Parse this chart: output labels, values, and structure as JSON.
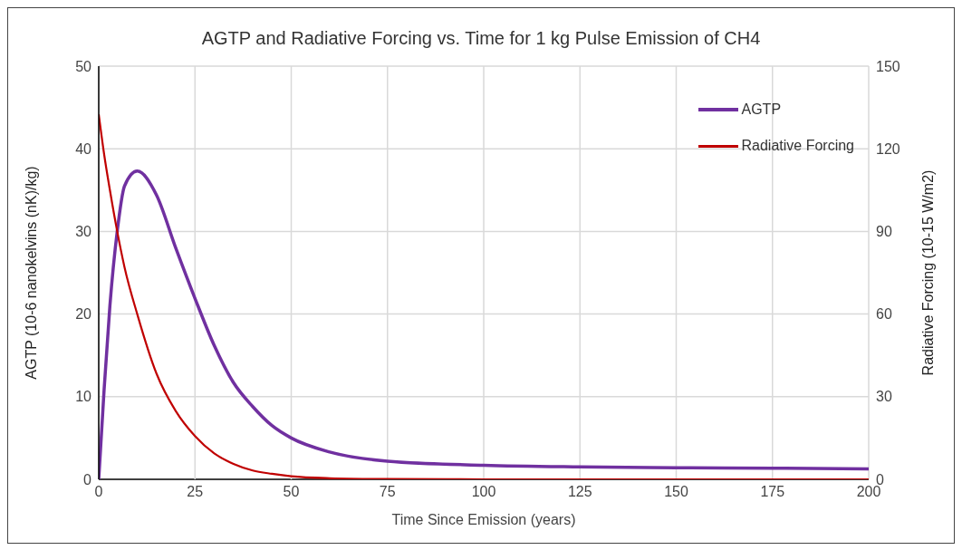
{
  "chart_data": {
    "type": "line",
    "title": "AGTP and Radiative Forcing vs. Time for 1 kg Pulse Emission of CH4",
    "xlabel": "Time Since Emission (years)",
    "ylabel": "AGTP (10-6 nanokelvins (nK)/kg)",
    "y2label": "Radiative Forcing (10-15 W/m2)",
    "x": [
      0,
      1.4,
      2.9,
      4.8,
      6.7,
      10,
      15,
      20,
      25,
      30,
      35,
      40,
      45,
      50,
      60,
      75,
      100,
      125,
      150,
      175,
      200
    ],
    "series": [
      {
        "name": "AGTP",
        "color": "#7030a0",
        "values": [
          0,
          10.9,
          21,
          30,
          35.5,
          37.3,
          34.4,
          28,
          21.9,
          16.2,
          11.7,
          8.8,
          6.5,
          5.0,
          3.3,
          2.2,
          1.7,
          1.5,
          1.4,
          1.35,
          1.25
        ]
      },
      {
        "name": "Radiative Forcing",
        "color": "#c00000",
        "axis": "y2",
        "values": [
          132.5,
          118,
          105,
          90,
          77,
          60,
          38.4,
          24.8,
          15.7,
          9.4,
          5.6,
          3.2,
          2,
          1.1,
          0.4,
          0.1,
          0,
          0,
          0,
          0,
          0
        ]
      }
    ],
    "xlim": [
      0,
      200
    ],
    "xticks": [
      0,
      25,
      50,
      75,
      100,
      125,
      150,
      175,
      200
    ],
    "ylim": [
      0,
      50
    ],
    "yticks": [
      0,
      10,
      20,
      30,
      40,
      50
    ],
    "y2lim": [
      0,
      150
    ],
    "y2ticks": [
      0,
      30,
      60,
      90,
      120,
      150
    ],
    "grid": true,
    "legend": "top right",
    "marker": "none",
    "line_style": "solid"
  }
}
